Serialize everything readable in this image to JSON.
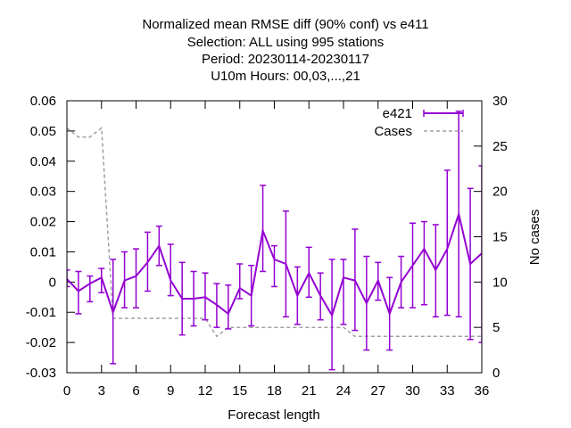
{
  "chart_data": {
    "type": "line",
    "title_lines": [
      "Normalized mean RMSE diff (90% conf) vs e411",
      "Selection: ALL using   995 stations",
      "Period: 20230114-20230117",
      "U10m   Hours:  00,03,...,21"
    ],
    "xlabel": "Forecast length",
    "ylabel": "",
    "y2label": "No cases",
    "xlim": [
      0,
      36
    ],
    "ylim": [
      -0.03,
      0.06
    ],
    "y2lim": [
      0,
      30
    ],
    "xticks": [
      0,
      3,
      6,
      9,
      12,
      15,
      18,
      21,
      24,
      27,
      30,
      33,
      36
    ],
    "yticks": [
      "-0.03",
      "-0.02",
      "-0.01",
      "0",
      "0.01",
      "0.02",
      "0.03",
      "0.04",
      "0.05",
      "0.06"
    ],
    "y2ticks": [
      0,
      5,
      10,
      15,
      20,
      25,
      30
    ],
    "legend_position": "top-right",
    "colors": {
      "e421": "#9400D3",
      "cases": "#a0a0a0"
    },
    "series": [
      {
        "name": "e421",
        "style": "errorlines",
        "x": [
          0,
          1,
          2,
          3,
          4,
          5,
          6,
          7,
          8,
          9,
          10,
          11,
          12,
          13,
          14,
          15,
          16,
          17,
          18,
          19,
          20,
          21,
          22,
          23,
          24,
          25,
          26,
          27,
          28,
          29,
          30,
          31,
          32,
          33,
          34,
          35,
          36
        ],
        "values": [
          0.001,
          -0.003,
          -0.0005,
          0.0015,
          -0.01,
          0.0005,
          0.002,
          0.0065,
          0.012,
          0.0005,
          -0.0055,
          -0.0055,
          -0.005,
          -0.0075,
          -0.0105,
          -0.002,
          -0.0045,
          0.017,
          0.0075,
          0.006,
          -0.0045,
          0.003,
          -0.0045,
          -0.011,
          0.0015,
          0.0005,
          -0.007,
          0.0005,
          -0.0105,
          0,
          0.0055,
          0.011,
          0.004,
          0.011,
          0.0225,
          0.006,
          0.0095
        ],
        "low": [
          -0.0015,
          -0.0105,
          -0.0065,
          -0.0035,
          -0.027,
          -0.0085,
          -0.0085,
          -0.003,
          0.0055,
          -0.0045,
          -0.0175,
          -0.0145,
          -0.0125,
          -0.015,
          -0.0155,
          -0.0055,
          -0.0145,
          0.0035,
          -0.0015,
          -0.0115,
          -0.014,
          -0.005,
          -0.0125,
          -0.029,
          -0.014,
          -0.016,
          -0.0225,
          -0.006,
          -0.0225,
          -0.0085,
          -0.0085,
          -0.0075,
          -0.0115,
          -0.011,
          -0.0115,
          -0.019,
          -0.02
        ],
        "high": [
          0.004,
          0.0035,
          0.002,
          0.0045,
          0.0075,
          0.01,
          0.011,
          0.0165,
          0.0185,
          0.0125,
          0.0065,
          0.0035,
          0.003,
          -0.0005,
          -0.001,
          0.006,
          0.0055,
          0.032,
          0.012,
          0.0235,
          0.005,
          0.0115,
          0.003,
          0.0075,
          0.0075,
          0.0175,
          0.0085,
          0.0065,
          0.0015,
          0.0085,
          0.0195,
          0.02,
          0.019,
          0.037,
          0.0565,
          0.031,
          0.0385
        ]
      },
      {
        "name": "Cases",
        "axis": "y2",
        "style": "dashed",
        "x": [
          0,
          1,
          2,
          3,
          4,
          5,
          6,
          7,
          8,
          9,
          10,
          11,
          12,
          13,
          14,
          15,
          16,
          17,
          18,
          19,
          20,
          21,
          22,
          23,
          24,
          25,
          26,
          27,
          28,
          29,
          30,
          31,
          32,
          33,
          34,
          35,
          36
        ],
        "values": [
          27,
          26,
          26,
          27,
          6,
          6,
          6,
          6,
          6,
          6,
          6,
          6,
          6,
          4,
          5,
          5,
          5,
          5,
          5,
          5,
          5,
          5,
          5,
          5,
          5,
          4,
          4,
          4,
          4,
          4,
          4,
          4,
          4,
          4,
          4,
          4,
          4
        ]
      }
    ]
  }
}
